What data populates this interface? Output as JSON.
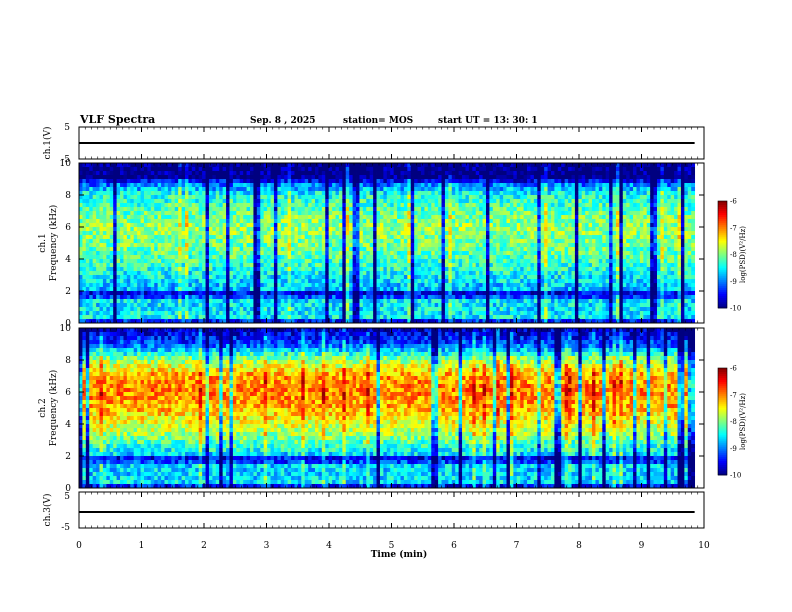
{
  "header": {
    "title": "VLF Spectra",
    "date": "Sep. 8 , 2025",
    "station": "station= MOS",
    "start": "start UT = 13: 30: 1"
  },
  "chart_data": [
    {
      "type": "line",
      "panel": "ch1-waveform",
      "ylabel": "ch.1(V)",
      "ylim": [
        -5,
        5
      ],
      "yticks": [
        "5",
        "-5"
      ],
      "x": [
        0,
        9.85
      ],
      "values": [
        0,
        0
      ]
    },
    {
      "type": "heatmap",
      "panel": "ch1-spectrogram",
      "ylabel": "ch.1\nFrequency (kHz)",
      "ylim": [
        0,
        10
      ],
      "yticks": [
        "0",
        "2",
        "4",
        "6",
        "8",
        "10"
      ],
      "xlim": [
        0,
        9.85
      ],
      "colorbar": {
        "label": "log(PSD)(V²/Hz)",
        "range": [
          -10,
          -6
        ],
        "ticks": [
          "-6",
          "-7",
          "-8",
          "-9",
          "-10"
        ]
      },
      "profile": [
        [
          0,
          -10
        ],
        [
          0.3,
          -8.5
        ],
        [
          1.5,
          -8.6
        ],
        [
          1.8,
          -10
        ],
        [
          2,
          -8.8
        ],
        [
          4,
          -8.2
        ],
        [
          6,
          -7.9
        ],
        [
          8,
          -8.4
        ],
        [
          8.8,
          -9.2
        ],
        [
          9,
          -10
        ],
        [
          10,
          -10
        ]
      ]
    },
    {
      "type": "heatmap",
      "panel": "ch2-spectrogram",
      "ylabel": "ch.2\nFrequency (kHz)",
      "ylim": [
        0,
        10
      ],
      "yticks": [
        "0",
        "2",
        "4",
        "6",
        "8",
        "10"
      ],
      "xlim": [
        0,
        9.85
      ],
      "colorbar": {
        "label": "log(PSD)(V²/Hz)",
        "range": [
          -10,
          -6
        ],
        "ticks": [
          "-6",
          "-7",
          "-8",
          "-9",
          "-10"
        ]
      },
      "profile": [
        [
          0,
          -10
        ],
        [
          0.3,
          -8.6
        ],
        [
          1.5,
          -8.7
        ],
        [
          1.8,
          -10
        ],
        [
          2,
          -8.7
        ],
        [
          3.5,
          -7.8
        ],
        [
          5,
          -7.2
        ],
        [
          6,
          -7
        ],
        [
          7,
          -7.1
        ],
        [
          8,
          -7.9
        ],
        [
          9,
          -9.2
        ],
        [
          10,
          -9.8
        ]
      ]
    },
    {
      "type": "line",
      "panel": "ch3-waveform",
      "ylabel": "ch.3(V)",
      "ylim": [
        -5,
        5
      ],
      "yticks": [
        "5",
        "-5"
      ],
      "x": [
        0,
        9.85
      ],
      "values": [
        0,
        0
      ],
      "xlabel": "Time (min)",
      "xlim": [
        0,
        10
      ],
      "xticks": [
        "0",
        "1",
        "2",
        "3",
        "4",
        "5",
        "6",
        "7",
        "8",
        "9",
        "10"
      ]
    }
  ]
}
